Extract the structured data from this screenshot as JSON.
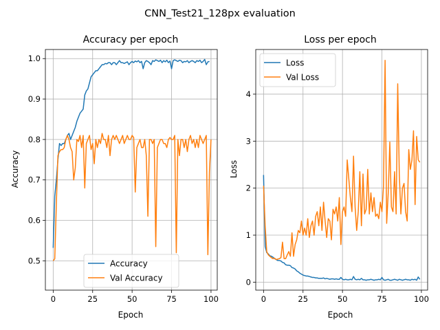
{
  "figure": {
    "title": "CNN_Test21_128px evaluation"
  },
  "chart_data": [
    {
      "type": "line",
      "title": "Accuracy per epoch",
      "xlabel": "Epoch",
      "ylabel": "Accuracy",
      "xlim": [
        -4.95,
        103.95
      ],
      "ylim": [
        0.4275,
        1.0225
      ],
      "xticks": [
        0,
        25,
        50,
        75,
        100
      ],
      "yticks": [
        0.5,
        0.6,
        0.7,
        0.8,
        0.9,
        1.0
      ],
      "ytick_labels": [
        "0.5",
        "0.6",
        "0.7",
        "0.8",
        "0.9",
        "1.0"
      ],
      "grid": true,
      "legend_position": "lower center",
      "series": [
        {
          "name": "Accuracy",
          "color": "#1f77b4",
          "values": [
            0.532,
            0.66,
            0.7,
            0.75,
            0.79,
            0.785,
            0.79,
            0.79,
            0.8,
            0.81,
            0.815,
            0.8,
            0.81,
            0.82,
            0.83,
            0.845,
            0.855,
            0.865,
            0.87,
            0.875,
            0.91,
            0.92,
            0.925,
            0.94,
            0.955,
            0.96,
            0.965,
            0.97,
            0.97,
            0.975,
            0.98,
            0.985,
            0.985,
            0.988,
            0.987,
            0.99,
            0.99,
            0.985,
            0.99,
            0.99,
            0.985,
            0.99,
            0.995,
            0.99,
            0.99,
            0.988,
            0.99,
            0.992,
            0.985,
            0.99,
            0.993,
            0.99,
            0.994,
            0.992,
            0.995,
            0.99,
            0.993,
            0.975,
            0.99,
            0.995,
            0.993,
            0.99,
            0.985,
            0.995,
            0.993,
            0.997,
            0.995,
            0.993,
            0.996,
            0.99,
            0.995,
            0.992,
            0.996,
            0.99,
            0.994,
            0.975,
            0.995,
            0.997,
            0.995,
            0.993,
            0.996,
            0.995,
            0.99,
            0.993,
            0.992,
            0.995,
            0.99,
            0.993,
            0.995,
            0.993,
            0.99,
            0.995,
            0.993,
            0.996,
            0.99,
            0.993,
            0.998,
            0.985,
            0.992,
            0.993
          ]
        },
        {
          "name": "Val Accuracy",
          "color": "#ff7f0e",
          "values": [
            0.5,
            0.505,
            0.64,
            0.76,
            0.77,
            0.775,
            0.775,
            0.78,
            0.8,
            0.81,
            0.8,
            0.78,
            0.77,
            0.7,
            0.73,
            0.8,
            0.795,
            0.81,
            0.78,
            0.81,
            0.68,
            0.79,
            0.8,
            0.81,
            0.775,
            0.79,
            0.74,
            0.8,
            0.78,
            0.8,
            0.79,
            0.815,
            0.8,
            0.8,
            0.78,
            0.81,
            0.76,
            0.8,
            0.81,
            0.8,
            0.81,
            0.8,
            0.79,
            0.8,
            0.81,
            0.79,
            0.8,
            0.81,
            0.8,
            0.8,
            0.81,
            0.805,
            0.67,
            0.78,
            0.79,
            0.8,
            0.78,
            0.78,
            0.8,
            0.76,
            0.61,
            0.8,
            0.8,
            0.79,
            0.8,
            0.535,
            0.78,
            0.79,
            0.8,
            0.8,
            0.79,
            0.79,
            0.78,
            0.8,
            0.805,
            0.8,
            0.8,
            0.81,
            0.52,
            0.8,
            0.76,
            0.8,
            0.8,
            0.78,
            0.8,
            0.77,
            0.8,
            0.81,
            0.79,
            0.8,
            0.78,
            0.8,
            0.78,
            0.81,
            0.8,
            0.79,
            0.8,
            0.81,
            0.515,
            0.72,
            0.8
          ]
        }
      ]
    },
    {
      "type": "line",
      "title": "Loss per epoch",
      "xlabel": "Epoch",
      "ylabel": "Loss",
      "xlim": [
        -4.95,
        103.95
      ],
      "ylim": [
        -0.17,
        4.95
      ],
      "xticks": [
        0,
        25,
        50,
        75,
        100
      ],
      "yticks": [
        0,
        1,
        2,
        3,
        4
      ],
      "ytick_labels": [
        "0",
        "1",
        "2",
        "3",
        "4"
      ],
      "grid": true,
      "legend_position": "upper left",
      "series": [
        {
          "name": "Loss",
          "color": "#1f77b4",
          "values": [
            2.28,
            0.76,
            0.63,
            0.6,
            0.56,
            0.55,
            0.53,
            0.5,
            0.48,
            0.46,
            0.46,
            0.45,
            0.42,
            0.41,
            0.37,
            0.36,
            0.36,
            0.35,
            0.31,
            0.3,
            0.28,
            0.24,
            0.22,
            0.19,
            0.17,
            0.15,
            0.14,
            0.13,
            0.13,
            0.12,
            0.11,
            0.1,
            0.1,
            0.09,
            0.09,
            0.08,
            0.08,
            0.08,
            0.09,
            0.07,
            0.08,
            0.07,
            0.06,
            0.07,
            0.07,
            0.06,
            0.07,
            0.06,
            0.06,
            0.1,
            0.06,
            0.05,
            0.06,
            0.05,
            0.05,
            0.06,
            0.05,
            0.12,
            0.06,
            0.05,
            0.06,
            0.05,
            0.08,
            0.05,
            0.05,
            0.04,
            0.05,
            0.05,
            0.06,
            0.05,
            0.04,
            0.05,
            0.05,
            0.06,
            0.05,
            0.1,
            0.05,
            0.04,
            0.05,
            0.06,
            0.04,
            0.04,
            0.05,
            0.06,
            0.05,
            0.04,
            0.06,
            0.05,
            0.04,
            0.05,
            0.06,
            0.05,
            0.05,
            0.04,
            0.06,
            0.05,
            0.06,
            0.04,
            0.11,
            0.06
          ]
        },
        {
          "name": "Val Loss",
          "color": "#ff7f0e",
          "values": [
            2.05,
            1.2,
            0.65,
            0.58,
            0.55,
            0.52,
            0.5,
            0.51,
            0.48,
            0.49,
            0.5,
            0.52,
            0.85,
            0.5,
            0.5,
            0.58,
            0.65,
            0.55,
            1.05,
            0.55,
            0.8,
            0.9,
            1.1,
            1.05,
            1.3,
            1.0,
            1.15,
            1.0,
            1.35,
            0.95,
            1.2,
            1.3,
            1.0,
            1.4,
            1.5,
            1.2,
            1.6,
            1.1,
            1.7,
            1.3,
            0.95,
            1.35,
            1.3,
            0.9,
            1.55,
            1.45,
            1.6,
            1.3,
            1.8,
            0.8,
            1.5,
            1.6,
            1.4,
            2.6,
            2.2,
            1.8,
            1.5,
            2.68,
            1.6,
            1.1,
            1.5,
            2.35,
            1.2,
            2.3,
            1.45,
            1.55,
            2.4,
            1.45,
            1.9,
            1.5,
            1.8,
            1.4,
            1.45,
            1.35,
            1.7,
            1.5,
            2.05,
            4.72,
            1.25,
            1.9,
            2.98,
            1.6,
            1.5,
            2.35,
            1.45,
            4.22,
            2.3,
            1.45,
            2.0,
            2.1,
            1.5,
            1.3,
            2.82,
            2.4,
            2.6,
            3.22,
            1.65,
            3.1,
            2.6,
            2.55
          ]
        }
      ]
    }
  ]
}
